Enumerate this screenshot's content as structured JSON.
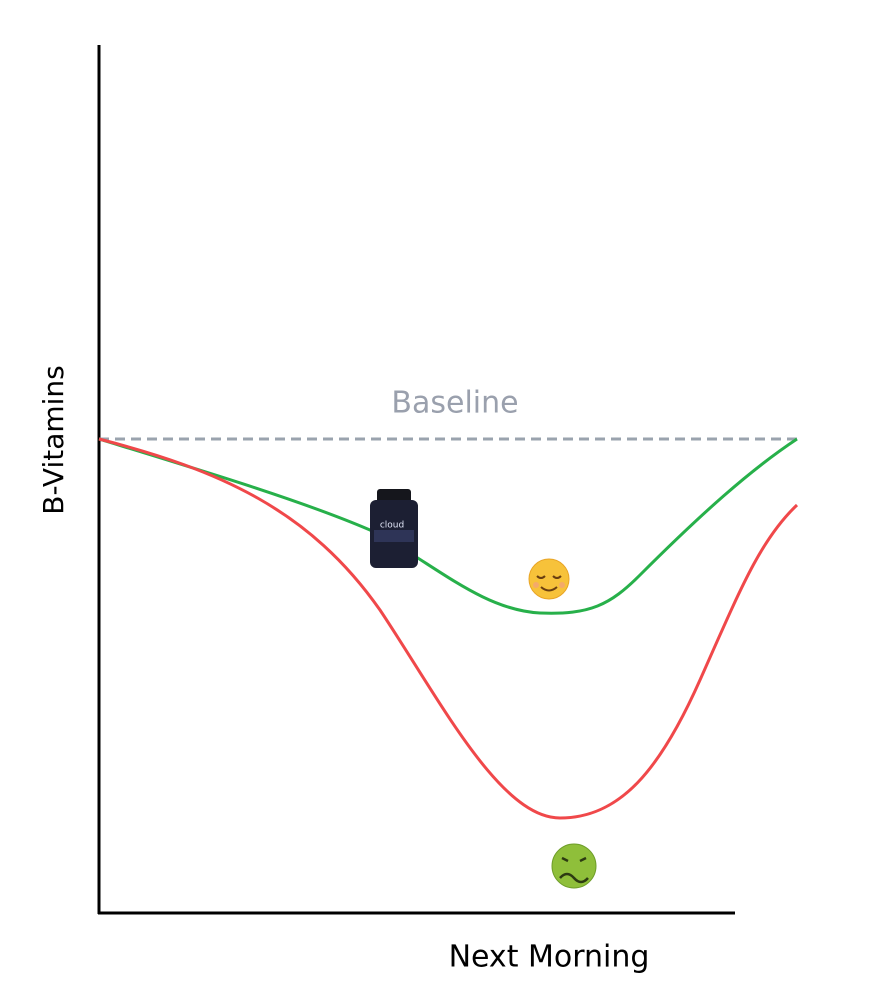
{
  "axes": {
    "y_label": "B-Vitamins",
    "x_label": "Next Morning"
  },
  "baseline": {
    "label": "Baseline"
  },
  "bottle": {
    "label": "cloud"
  }
}
